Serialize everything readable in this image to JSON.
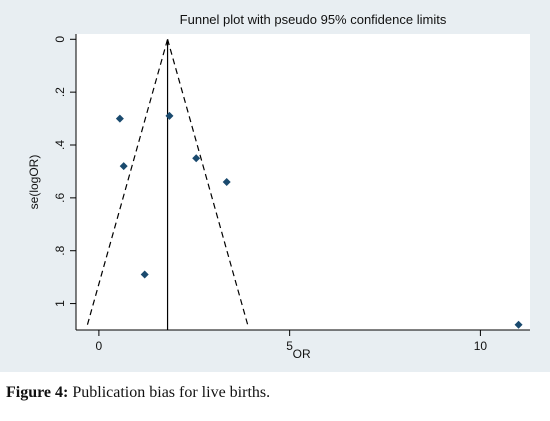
{
  "chart_data": {
    "type": "scatter",
    "title": "Funnel plot with pseudo 95% confidence limits",
    "xlabel": "OR",
    "ylabel": "se(logOR)",
    "xlim": [
      -0.6,
      11.3
    ],
    "ylim": [
      1.1,
      -0.02
    ],
    "y_reversed": true,
    "xticks": [
      0,
      5,
      10
    ],
    "xtick_labels": [
      "0",
      "5",
      "10"
    ],
    "yticks": [
      0,
      0.2,
      0.4,
      0.6,
      0.8,
      1
    ],
    "ytick_labels": [
      "0",
      ".2",
      ".4",
      ".6",
      ".8",
      "1"
    ],
    "grid": false,
    "legend": "none",
    "pooled_or": 1.8,
    "funnel_lines": [
      {
        "name": "lower 95% limit",
        "points": [
          [
            -0.3,
            1.08
          ],
          [
            1.8,
            0
          ]
        ]
      },
      {
        "name": "upper 95% limit",
        "points": [
          [
            1.8,
            0
          ],
          [
            3.9,
            1.08
          ]
        ]
      },
      {
        "name": "pooled estimate",
        "points": [
          [
            1.8,
            0
          ],
          [
            1.8,
            1.1
          ]
        ]
      }
    ],
    "points": [
      {
        "x": 0.55,
        "y": 0.3
      },
      {
        "x": 0.65,
        "y": 0.48
      },
      {
        "x": 1.85,
        "y": 0.29
      },
      {
        "x": 2.55,
        "y": 0.45
      },
      {
        "x": 3.35,
        "y": 0.54
      },
      {
        "x": 1.2,
        "y": 0.89
      },
      {
        "x": 11.0,
        "y": 1.08
      }
    ],
    "colors": {
      "plot_background": "#ffffff",
      "outer_background": "#e8eef2",
      "marker": "#1a4a6e",
      "line": "#000000"
    }
  },
  "caption": {
    "label": "Figure 4:",
    "text": " Publication bias for live births."
  }
}
